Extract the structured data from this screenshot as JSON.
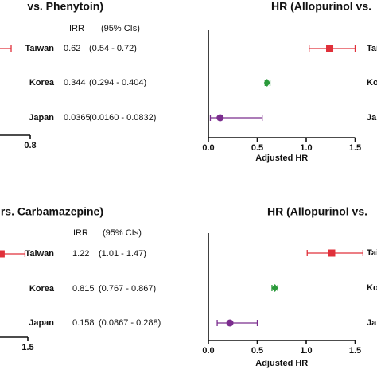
{
  "chart_data": [
    {
      "type": "forest",
      "title": "vs. Phenytoin)",
      "categories": [
        "Taiwan",
        "Korea",
        "Japan"
      ],
      "values": [
        0.62,
        0.344,
        0.0365
      ],
      "ci_low": [
        0.54,
        0.294,
        0.016
      ],
      "ci_high": [
        0.72,
        0.404,
        0.0832
      ],
      "columns": [
        "IRR",
        "(95% CIs)"
      ],
      "ci_labels": [
        "(0.54 - 0.72)",
        "(0.294 - 0.404)",
        "(0.0160 - 0.0832)"
      ],
      "colors": [
        "#e0303a",
        "#2a9a3a",
        "#7b2d8e"
      ],
      "markers": [
        "square",
        "diamond",
        "circle"
      ],
      "xlim": [
        0,
        0.8
      ],
      "xticks": [
        0.8
      ]
    },
    {
      "type": "forest",
      "title": "HR (Allopurinol vs.",
      "categories": [
        "Taiwan",
        "Korea",
        "Japan"
      ],
      "values": [
        1.24,
        0.6,
        0.12
      ],
      "ci_low": [
        1.03,
        0.58,
        0.02
      ],
      "ci_high": [
        1.5,
        0.63,
        0.55
      ],
      "colors": [
        "#e0303a",
        "#2a9a3a",
        "#7b2d8e"
      ],
      "markers": [
        "square",
        "diamond",
        "circle"
      ],
      "xlim": [
        0,
        1.5
      ],
      "xticks": [
        {
          "value": 0,
          "label": "0.0"
        },
        0.5,
        {
          "value": 1,
          "label": "1.0"
        },
        1.5
      ],
      "xlabel": "Adjusted HR"
    },
    {
      "type": "forest",
      "title": "rs. Carbamazepine)",
      "categories": [
        "Taiwan",
        "Korea",
        "Japan"
      ],
      "values": [
        1.22,
        0.815,
        0.158
      ],
      "ci_low": [
        1.01,
        0.767,
        0.0867
      ],
      "ci_high": [
        1.47,
        0.867,
        0.288
      ],
      "columns": [
        "IRR",
        "(95% CIs)"
      ],
      "ci_labels": [
        "(1.01 - 1.47)",
        "(0.767 - 0.867)",
        "(0.0867 - 0.288)"
      ],
      "colors": [
        "#e0303a",
        "#2a9a3a",
        "#7b2d8e"
      ],
      "markers": [
        "square",
        "diamond",
        "circle"
      ],
      "xlim": [
        0,
        1.5
      ],
      "xticks": [
        1.5
      ]
    },
    {
      "type": "forest",
      "title": "HR (Allopurinol vs.",
      "categories": [
        "Taiwan",
        "Korea",
        "Japan"
      ],
      "values": [
        1.26,
        0.68,
        0.22
      ],
      "ci_low": [
        1.01,
        0.65,
        0.09
      ],
      "ci_high": [
        1.58,
        0.71,
        0.5
      ],
      "colors": [
        "#e0303a",
        "#2a9a3a",
        "#7b2d8e"
      ],
      "markers": [
        "square",
        "diamond",
        "circle"
      ],
      "xlim": [
        0,
        1.5
      ],
      "xticks": [
        {
          "value": 0,
          "label": "0.0"
        },
        0.5,
        {
          "value": 1,
          "label": "1.0"
        },
        1.5
      ],
      "xlabel": "Adjusted HR"
    }
  ]
}
